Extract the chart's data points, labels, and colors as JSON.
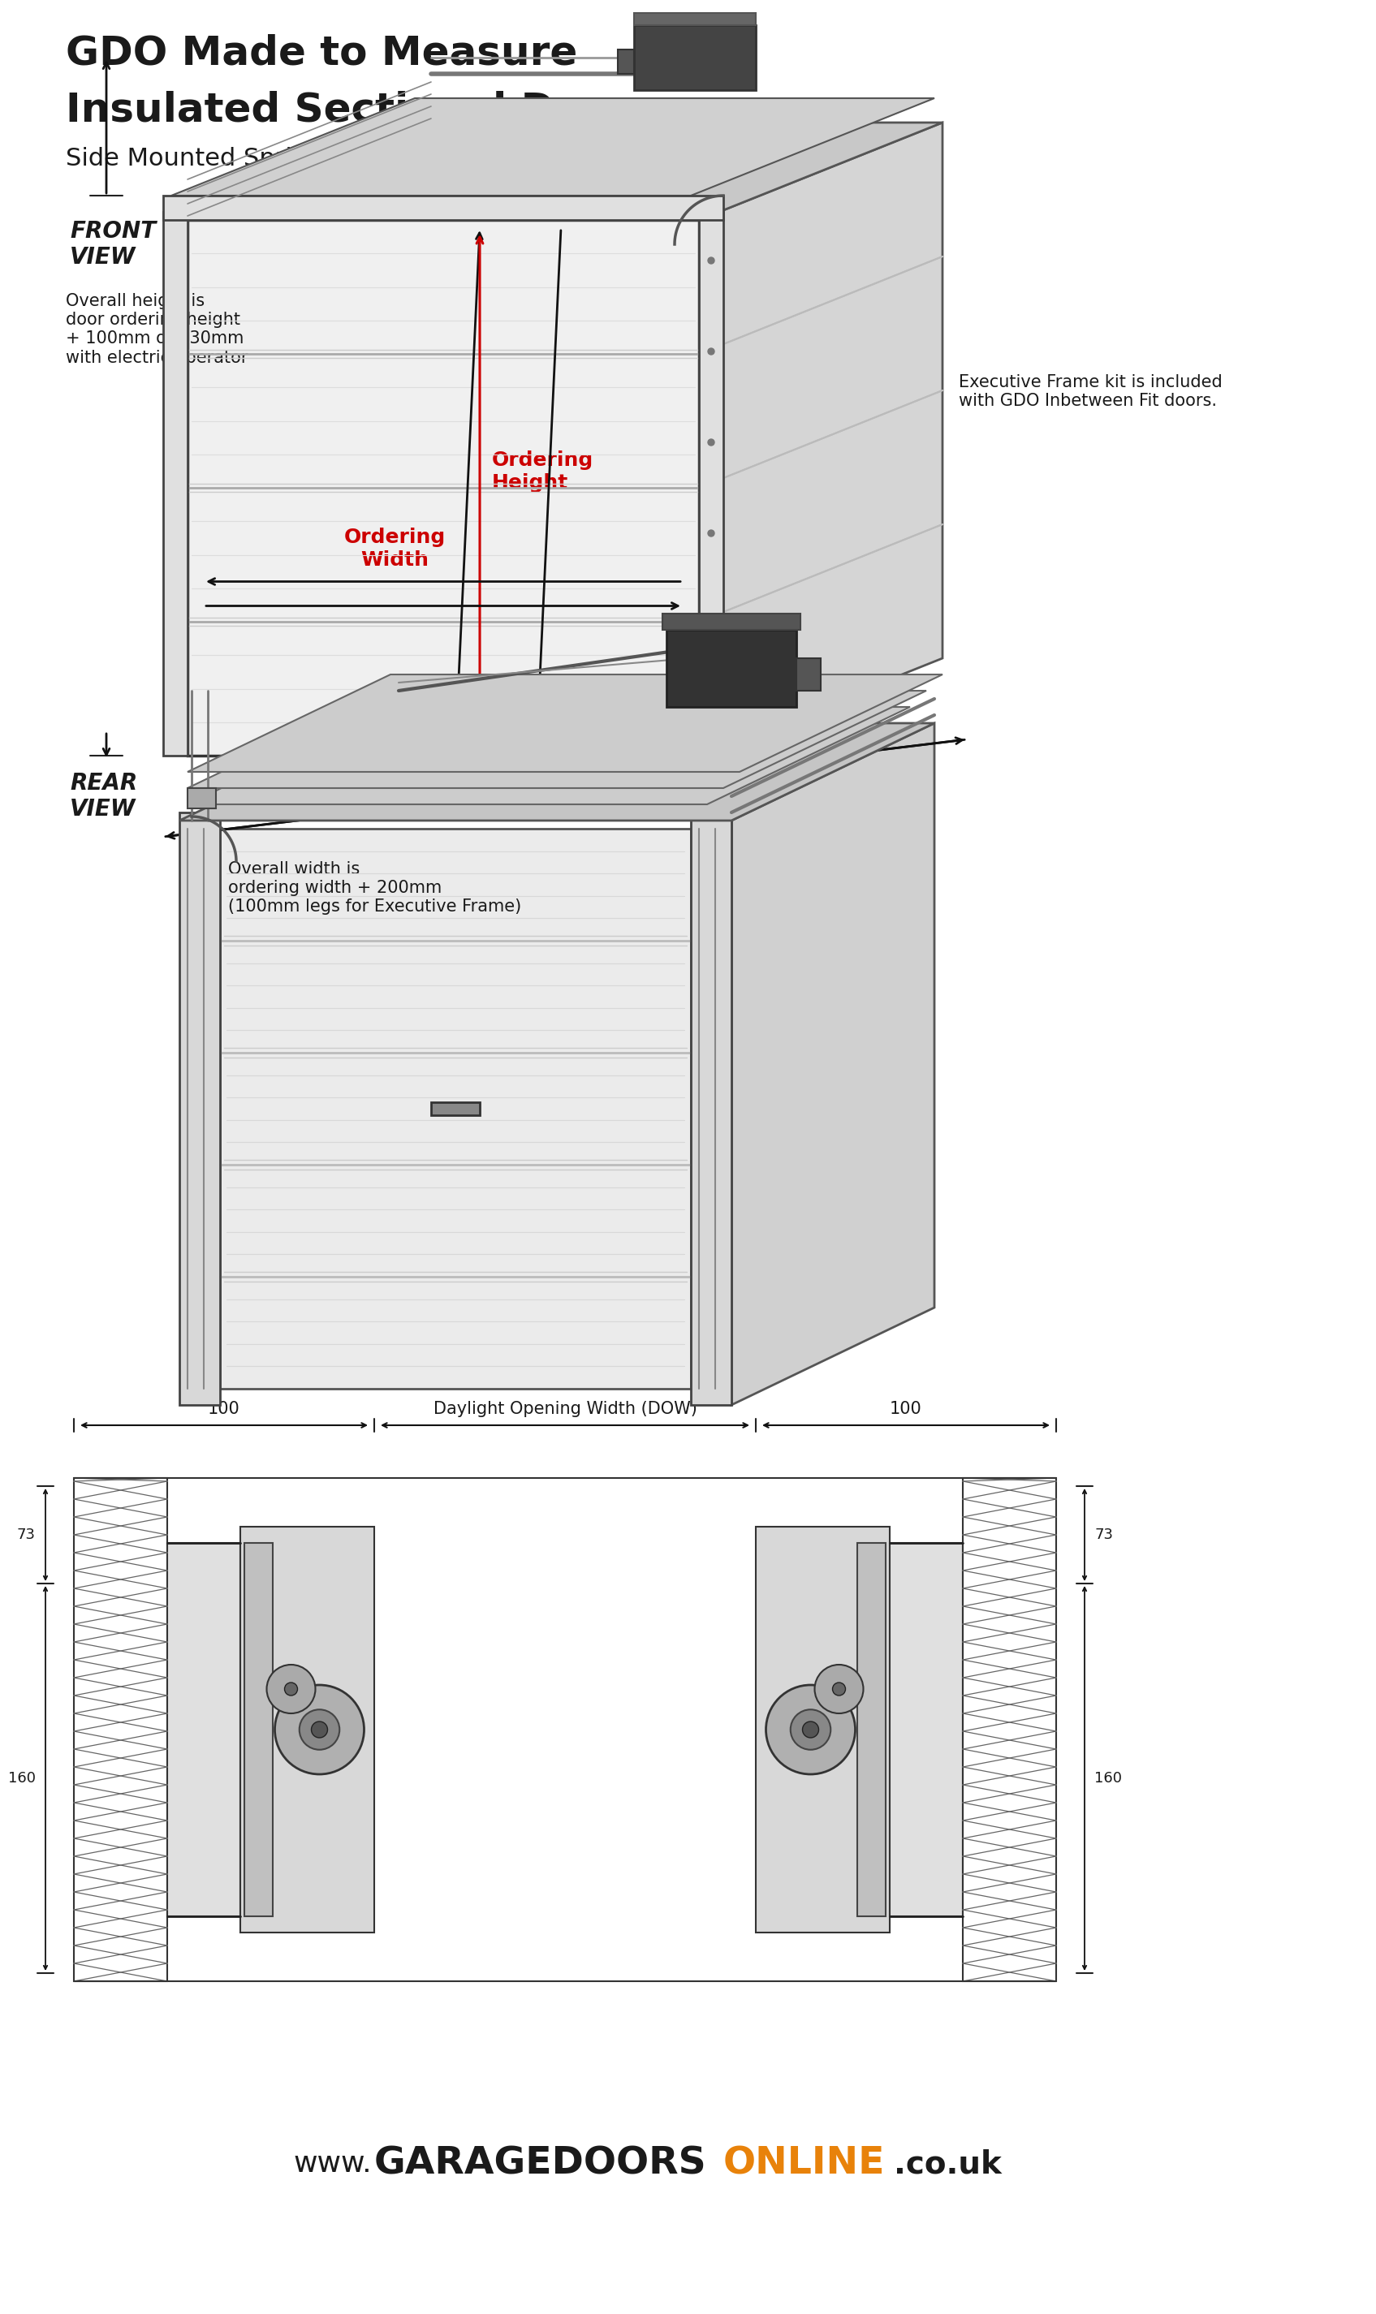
{
  "title_line1": "GDO Made to Measure",
  "title_line2": "Insulated Sectional Door",
  "subtitle": "Side Mounted Spring System - In Between Fit",
  "front_view_label": "FRONT\nVIEW",
  "rear_view_label": "REAR\nVIEW",
  "ordering_height_label": "Ordering\nHeight",
  "ordering_width_label": "Ordering\nWidth",
  "overall_height_note": "Overall height is\ndoor ordering height\n+ 100mm or 130mm\nwith electric operator",
  "overall_width_note": "Overall width is\nordering width + 200mm\n(100mm legs for Executive Frame)",
  "executive_frame_note": "Executive Frame kit is included\nwith GDO Inbetween Fit doors.",
  "dow_label": "Daylight Opening Width (DOW)",
  "dim_100_left": "100",
  "dim_100_right": "100",
  "dim_73_left": "73",
  "dim_73_right": "73",
  "dim_160_left": "160",
  "dim_160_right": "160",
  "website_www": "www.",
  "website_main": "GARAGEDOORS",
  "website_online": "ONLINE",
  "website_couk": ".co.uk",
  "bg_color": "#ffffff",
  "text_color": "#1a1a1a",
  "red_color": "#cc0000",
  "orange_color": "#e8820a",
  "title_fontsize": 36,
  "subtitle_fontsize": 22,
  "note_fontsize": 15,
  "label_fontsize": 18,
  "view_fontsize": 20,
  "website_fontsize": 26
}
